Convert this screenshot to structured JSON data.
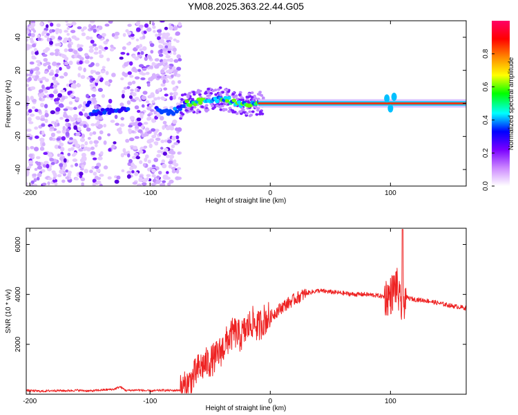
{
  "chart_data": [
    {
      "type": "heatmap",
      "title": "YM08.2025.363.22.44.G05",
      "xlabel": "Height of straight line (km)",
      "ylabel": "Frequency (Hz)",
      "xlim": [
        -203,
        163
      ],
      "ylim": [
        -50,
        50
      ],
      "xticks": [
        -200,
        -100,
        0,
        100
      ],
      "yticks": [
        -40,
        -20,
        0,
        20,
        40
      ],
      "grid": false,
      "noise_region_km": [
        -203,
        -75
      ],
      "ridge": [
        {
          "x": -150,
          "y": -6
        },
        {
          "x": -140,
          "y": -5
        },
        {
          "x": -130,
          "y": -4
        },
        {
          "x": -120,
          "y": -3
        },
        {
          "x": -110,
          "y": -2
        },
        {
          "x": -100,
          "y": -3
        },
        {
          "x": -90,
          "y": -5
        },
        {
          "x": -80,
          "y": -5
        },
        {
          "x": -70,
          "y": 0
        },
        {
          "x": -60,
          "y": 1
        },
        {
          "x": -50,
          "y": 2
        },
        {
          "x": -40,
          "y": 3
        },
        {
          "x": -30,
          "y": 1
        },
        {
          "x": -20,
          "y": -1
        },
        {
          "x": -10,
          "y": 0
        },
        {
          "x": 0,
          "y": 0
        },
        {
          "x": 50,
          "y": 0
        },
        {
          "x": 100,
          "y": 0
        },
        {
          "x": 163,
          "y": 0
        }
      ],
      "colorbar": {
        "label": "Normalized spectral amplitude",
        "range": [
          0,
          1
        ],
        "ticks": [
          0.0,
          0.2,
          0.4,
          0.6,
          0.8
        ],
        "colors": [
          "#ffffff",
          "#cc88ff",
          "#7a00ff",
          "#0000ff",
          "#00ffff",
          "#00ff00",
          "#ffff00",
          "#ff8800",
          "#ff0000",
          "#ff0066"
        ]
      }
    },
    {
      "type": "line",
      "title": "",
      "xlabel": "Height of straight line (km)",
      "ylabel": "SNR (10 * v/v)",
      "xlim": [
        -203,
        163
      ],
      "ylim": [
        0,
        6650
      ],
      "xticks": [
        -200,
        -100,
        0,
        100
      ],
      "yticks": [
        2000,
        4000,
        6000
      ],
      "grid": false,
      "series": [
        {
          "name": "SNR",
          "color": "#ee2222",
          "x": [
            -203,
            -190,
            -180,
            -170,
            -160,
            -150,
            -140,
            -130,
            -125,
            -120,
            -110,
            -100,
            -90,
            -80,
            -75,
            -70,
            -65,
            -60,
            -55,
            -50,
            -45,
            -40,
            -35,
            -30,
            -25,
            -20,
            -15,
            -10,
            -5,
            0,
            5,
            10,
            20,
            30,
            40,
            50,
            60,
            70,
            80,
            90,
            95,
            100,
            103,
            105,
            108,
            110,
            112,
            115,
            120,
            130,
            140,
            150,
            163
          ],
          "y": [
            150,
            120,
            150,
            140,
            160,
            130,
            170,
            200,
            300,
            150,
            170,
            130,
            160,
            150,
            170,
            300,
            600,
            1000,
            1200,
            1300,
            1500,
            1800,
            2200,
            2500,
            2300,
            2600,
            2900,
            2700,
            3000,
            3100,
            3300,
            3500,
            3800,
            4050,
            4150,
            4100,
            4050,
            4000,
            4000,
            3950,
            3900,
            3950,
            4200,
            4400,
            3600,
            3500,
            3900,
            3850,
            3800,
            3750,
            3650,
            3550,
            3450
          ]
        }
      ]
    }
  ]
}
